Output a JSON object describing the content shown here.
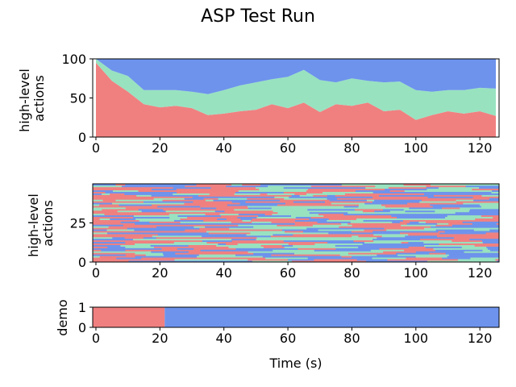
{
  "figure": {
    "title": "ASP Test Run"
  },
  "chart_data": [
    {
      "type": "area",
      "ylabel_lines": [
        "high-level",
        "actions"
      ],
      "xlim": [
        -1,
        126
      ],
      "ylim": [
        0,
        100
      ],
      "x_ticks": [
        0,
        20,
        40,
        60,
        80,
        100,
        120
      ],
      "y_ticks": [
        0,
        50,
        100
      ],
      "x": [
        0,
        5,
        10,
        15,
        20,
        25,
        30,
        35,
        40,
        45,
        50,
        55,
        60,
        65,
        70,
        75,
        80,
        85,
        90,
        95,
        100,
        105,
        110,
        115,
        120,
        125
      ],
      "stacking": "percent",
      "series": [
        {
          "color": "#f08080",
          "values": [
            95,
            72,
            58,
            42,
            38,
            40,
            37,
            28,
            30,
            33,
            35,
            42,
            37,
            44,
            32,
            42,
            40,
            44,
            33,
            35,
            22,
            28,
            33,
            30,
            33,
            27
          ]
        },
        {
          "color": "#98e2c0",
          "values": [
            5,
            13,
            20,
            18,
            22,
            20,
            21,
            27,
            30,
            33,
            35,
            32,
            40,
            42,
            41,
            28,
            35,
            28,
            37,
            36,
            38,
            30,
            27,
            30,
            30,
            35
          ]
        },
        {
          "color": "#6d93ec",
          "values": [
            0,
            15,
            22,
            40,
            40,
            40,
            42,
            45,
            40,
            34,
            30,
            26,
            23,
            14,
            27,
            30,
            25,
            28,
            30,
            29,
            40,
            42,
            40,
            40,
            37,
            38
          ]
        }
      ]
    },
    {
      "type": "heatmap",
      "ylabel_lines": [
        "high-level",
        "actions"
      ],
      "xlim": [
        -1,
        126
      ],
      "ylim": [
        0,
        50
      ],
      "x_ticks": [
        0,
        20,
        40,
        60,
        80,
        100,
        120
      ],
      "y_ticks": [
        0,
        25
      ],
      "rows": 50,
      "duration": 126,
      "categories_colors": [
        "#f08080",
        "#98e2c0",
        "#6d93ec"
      ]
    },
    {
      "type": "bar",
      "ylabel": "demo",
      "xlabel": "Time (s)",
      "xlim": [
        -1,
        126
      ],
      "ylim": [
        0,
        1
      ],
      "x_ticks": [
        0,
        20,
        40,
        60,
        80,
        100,
        120
      ],
      "y_ticks": [
        0,
        1
      ],
      "segments": [
        {
          "start": -1,
          "end": 21.5,
          "color": "#f08080"
        },
        {
          "start": 21.5,
          "end": 126,
          "color": "#6d93ec"
        }
      ]
    }
  ]
}
